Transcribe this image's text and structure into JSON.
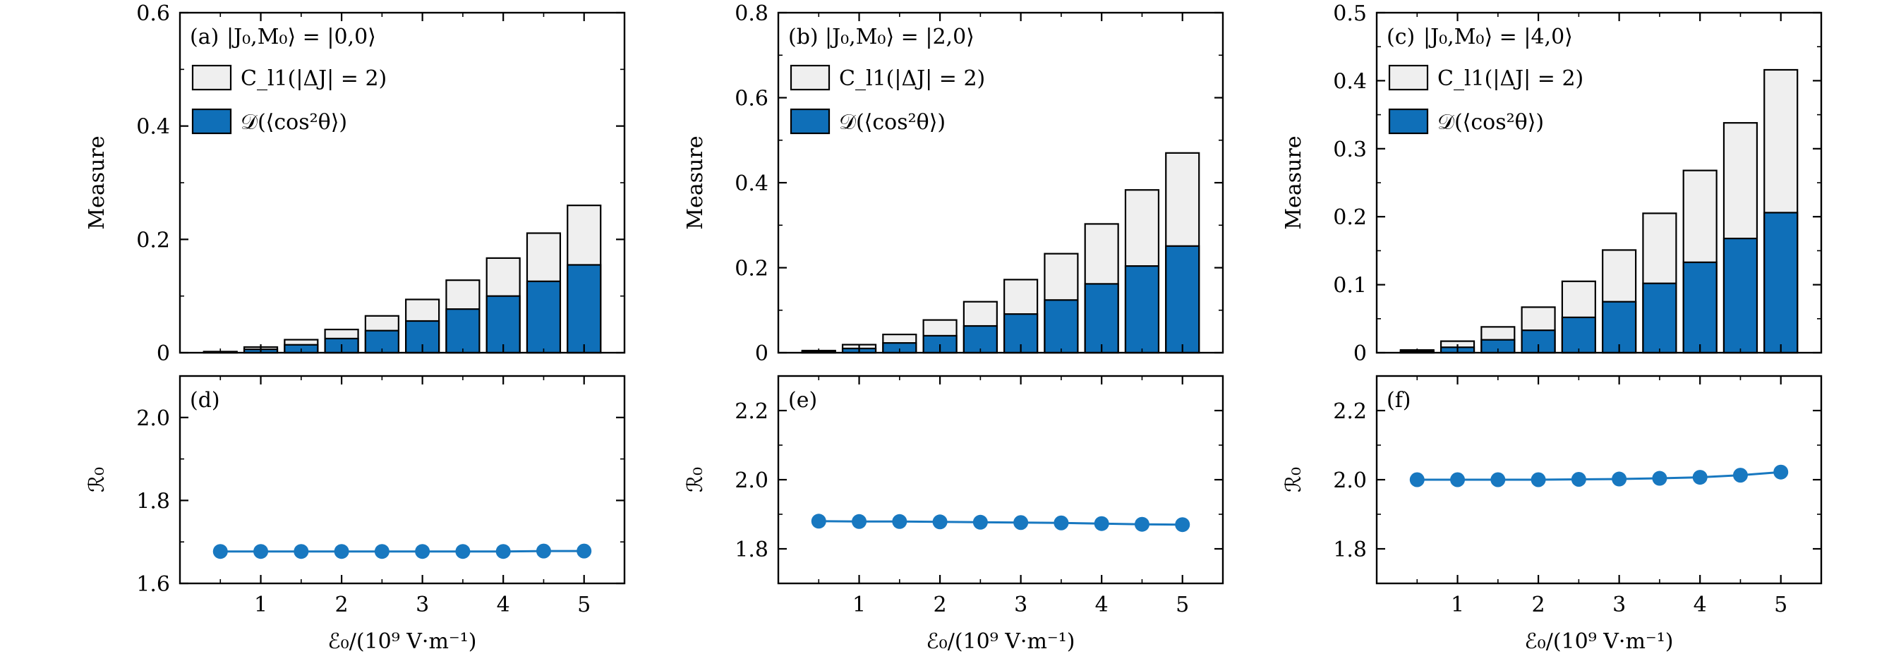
{
  "colors": {
    "bar_light": "#efefef",
    "bar_dark": "#0f6fb8",
    "line": "#1878c0",
    "axis": "#000000"
  },
  "chart_data": [
    {
      "type": "bar",
      "panel": "(a)",
      "title": "|J₀,M₀⟩ = |0,0⟩",
      "ylabel": "Measure",
      "xlabel": "",
      "x": [
        0.5,
        1.0,
        1.5,
        2.0,
        2.5,
        3.0,
        3.5,
        4.0,
        4.5,
        5.0
      ],
      "xlim": [
        0.0,
        5.5
      ],
      "ylim": [
        0,
        0.6
      ],
      "yticks": [
        0,
        0.2,
        0.4,
        0.6
      ],
      "ytick_labels": [
        "0",
        "0.2",
        "0.4",
        "0.6"
      ],
      "stacked": false,
      "legend_position": "top-left",
      "series": [
        {
          "name": "C_l1(|ΔJ| = 2)",
          "color_key": "bar_light",
          "values": [
            0.002,
            0.01,
            0.023,
            0.041,
            0.065,
            0.094,
            0.128,
            0.167,
            0.211,
            0.26
          ]
        },
        {
          "name": "𝒟(⟨cos²θ⟩)",
          "color_key": "bar_dark",
          "values": [
            0.001,
            0.006,
            0.014,
            0.025,
            0.039,
            0.056,
            0.077,
            0.1,
            0.126,
            0.155
          ]
        }
      ]
    },
    {
      "type": "bar",
      "panel": "(b)",
      "title": "|J₀,M₀⟩ = |2,0⟩",
      "ylabel": "Measure",
      "xlabel": "",
      "x": [
        0.5,
        1.0,
        1.5,
        2.0,
        2.5,
        3.0,
        3.5,
        4.0,
        4.5,
        5.0
      ],
      "xlim": [
        0.0,
        5.5
      ],
      "ylim": [
        0,
        0.8
      ],
      "yticks": [
        0,
        0.2,
        0.4,
        0.6,
        0.8
      ],
      "ytick_labels": [
        "0",
        "0.2",
        "0.4",
        "0.6",
        "0.8"
      ],
      "stacked": false,
      "legend_position": "top-left",
      "series": [
        {
          "name": "C_l1(|ΔJ| = 2)",
          "color_key": "bar_light",
          "values": [
            0.005,
            0.019,
            0.043,
            0.077,
            0.12,
            0.172,
            0.233,
            0.303,
            0.383,
            0.47
          ]
        },
        {
          "name": "𝒟(⟨cos²θ⟩)",
          "color_key": "bar_dark",
          "values": [
            0.003,
            0.01,
            0.023,
            0.04,
            0.063,
            0.091,
            0.124,
            0.162,
            0.204,
            0.251
          ]
        }
      ]
    },
    {
      "type": "bar",
      "panel": "(c)",
      "title": "|J₀,M₀⟩ = |4,0⟩",
      "ylabel": "Measure",
      "xlabel": "",
      "x": [
        0.5,
        1.0,
        1.5,
        2.0,
        2.5,
        3.0,
        3.5,
        4.0,
        4.5,
        5.0
      ],
      "xlim": [
        0.0,
        5.5
      ],
      "ylim": [
        0,
        0.5
      ],
      "yticks": [
        0,
        0.1,
        0.2,
        0.3,
        0.4,
        0.5
      ],
      "ytick_labels": [
        "0",
        "0.1",
        "0.2",
        "0.3",
        "0.4",
        "0.5"
      ],
      "stacked": false,
      "legend_position": "top-left",
      "series": [
        {
          "name": "C_l1(|ΔJ| = 2)",
          "color_key": "bar_light",
          "values": [
            0.004,
            0.017,
            0.038,
            0.067,
            0.105,
            0.151,
            0.205,
            0.268,
            0.338,
            0.416
          ]
        },
        {
          "name": "𝒟(⟨cos²θ⟩)",
          "color_key": "bar_dark",
          "values": [
            0.002,
            0.008,
            0.019,
            0.033,
            0.052,
            0.075,
            0.102,
            0.133,
            0.168,
            0.206
          ]
        }
      ]
    },
    {
      "type": "line",
      "panel": "(d)",
      "title": "",
      "ylabel": "ℛ₀",
      "xlabel": "ℰ₀/(10⁹  V·m⁻¹)",
      "x": [
        0.5,
        1.0,
        1.5,
        2.0,
        2.5,
        3.0,
        3.5,
        4.0,
        4.5,
        5.0
      ],
      "xlim": [
        0.0,
        5.5
      ],
      "ylim": [
        1.6,
        2.1
      ],
      "xticks": [
        1,
        2,
        3,
        4,
        5
      ],
      "xtick_labels": [
        "1",
        "2",
        "3",
        "4",
        "5"
      ],
      "yticks": [
        1.6,
        1.8,
        2.0
      ],
      "ytick_labels": [
        "1.6",
        "1.8",
        "2.0"
      ],
      "series": [
        {
          "name": "",
          "values": [
            1.677,
            1.677,
            1.677,
            1.677,
            1.677,
            1.677,
            1.677,
            1.677,
            1.678,
            1.678
          ]
        }
      ]
    },
    {
      "type": "line",
      "panel": "(e)",
      "title": "",
      "ylabel": "ℛ₀",
      "xlabel": "ℰ₀/(10⁹  V·m⁻¹)",
      "x": [
        0.5,
        1.0,
        1.5,
        2.0,
        2.5,
        3.0,
        3.5,
        4.0,
        4.5,
        5.0
      ],
      "xlim": [
        0.0,
        5.5
      ],
      "ylim": [
        1.7,
        2.3
      ],
      "xticks": [
        1,
        2,
        3,
        4,
        5
      ],
      "xtick_labels": [
        "1",
        "2",
        "3",
        "4",
        "5"
      ],
      "yticks": [
        1.8,
        2.0,
        2.2
      ],
      "ytick_labels": [
        "1.8",
        "2.0",
        "2.2"
      ],
      "series": [
        {
          "name": "",
          "values": [
            1.88,
            1.879,
            1.879,
            1.878,
            1.877,
            1.876,
            1.875,
            1.873,
            1.871,
            1.87
          ]
        }
      ]
    },
    {
      "type": "line",
      "panel": "(f)",
      "title": "",
      "ylabel": "ℛ₀",
      "xlabel": "ℰ₀/(10⁹  V·m⁻¹)",
      "x": [
        0.5,
        1.0,
        1.5,
        2.0,
        2.5,
        3.0,
        3.5,
        4.0,
        4.5,
        5.0
      ],
      "xlim": [
        0.0,
        5.5
      ],
      "ylim": [
        1.7,
        2.3
      ],
      "xticks": [
        1,
        2,
        3,
        4,
        5
      ],
      "xtick_labels": [
        "1",
        "2",
        "3",
        "4",
        "5"
      ],
      "yticks": [
        1.8,
        2.0,
        2.2
      ],
      "ytick_labels": [
        "1.8",
        "2.0",
        "2.2"
      ],
      "series": [
        {
          "name": "",
          "values": [
            2.0,
            2.0,
            2.0,
            2.0,
            2.001,
            2.002,
            2.004,
            2.007,
            2.013,
            2.022
          ]
        }
      ]
    }
  ]
}
